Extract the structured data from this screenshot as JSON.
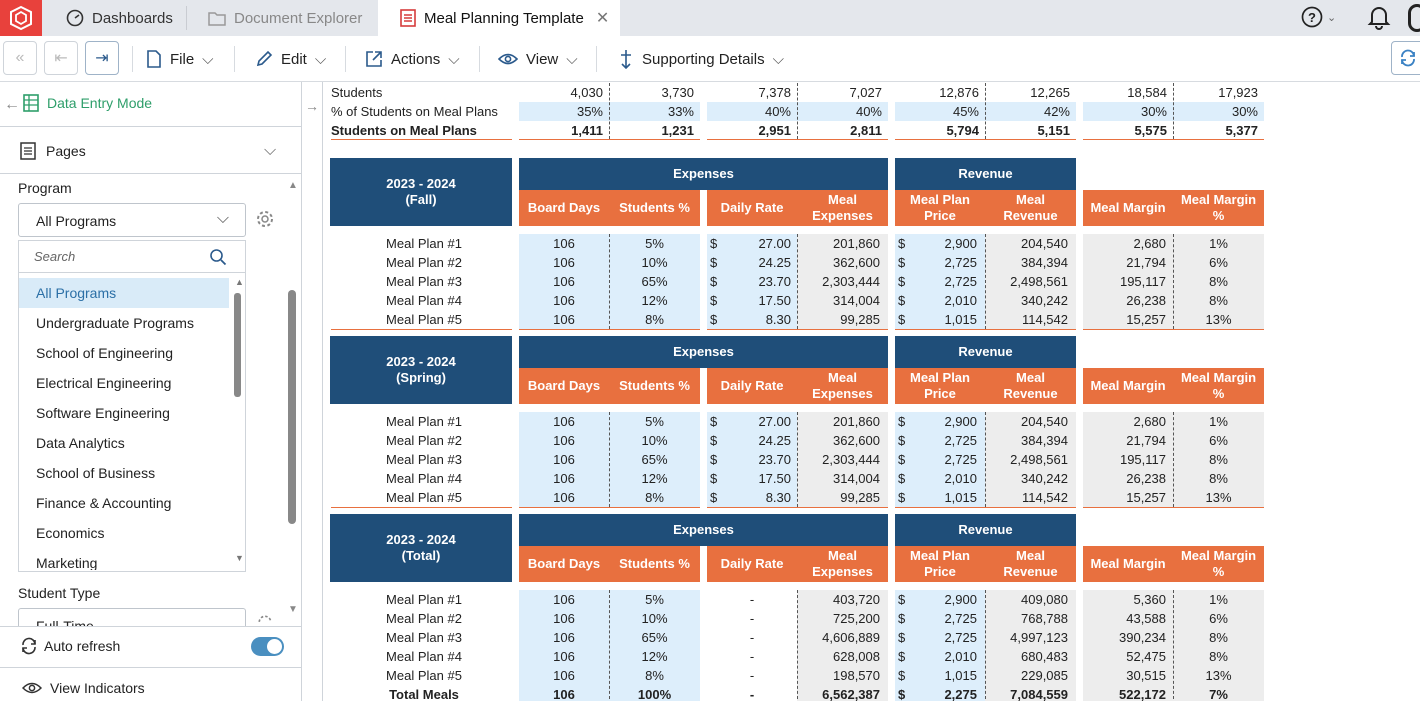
{
  "tabs": [
    {
      "label": "Dashboards",
      "icon": "dashboard-icon"
    },
    {
      "label": "Document Explorer",
      "icon": "folder-icon"
    },
    {
      "label": "Meal Planning Template",
      "icon": "document-icon"
    }
  ],
  "toolbar": {
    "menus": [
      "File",
      "Edit",
      "Actions",
      "View",
      "Supporting Details"
    ]
  },
  "sidebar": {
    "mode_label": "Data Entry Mode",
    "pages_label": "Pages",
    "program_label": "Program",
    "program_value": "All Programs",
    "search_placeholder": "Search",
    "options": [
      "All Programs",
      "Undergraduate Programs",
      "School of Engineering",
      "Electrical Engineering",
      "Software Engineering",
      "Data Analytics",
      "School of Business",
      "Finance & Accounting",
      "Economics",
      "Marketing"
    ],
    "student_type_label": "Student Type",
    "student_type_value": "Full-Time",
    "auto_refresh_label": "Auto refresh",
    "view_indicators_label": "View Indicators"
  },
  "top_rows": [
    {
      "label": "Students",
      "vals": [
        "4,030",
        "3,730",
        "7,378",
        "7,027",
        "12,876",
        "12,265",
        "18,584",
        "17,923"
      ]
    },
    {
      "label": "% of Students on Meal Plans",
      "vals": [
        "35%",
        "33%",
        "40%",
        "40%",
        "45%",
        "42%",
        "30%",
        "30%"
      ]
    },
    {
      "label": "Students on Meal Plans",
      "vals": [
        "1,411",
        "1,231",
        "2,951",
        "2,811",
        "5,794",
        "5,151",
        "5,575",
        "5,377"
      ]
    }
  ],
  "headers": {
    "expenses": "Expenses",
    "revenue": "Revenue",
    "board_days": "Board Days",
    "students_pct": "Students %",
    "daily_rate": "Daily Rate",
    "meal_expenses": "Meal Expenses",
    "meal_plan_price": "Meal Plan Price",
    "meal_revenue": "Meal Revenue",
    "meal_margin": "Meal Margin",
    "meal_margin_pct": "Meal Margin %"
  },
  "sections": [
    {
      "title1": "2023 - 2024",
      "title2": "(Fall)",
      "rows": [
        {
          "label": "Meal Plan #1",
          "days": "106",
          "pct": "5%",
          "rate": "27.00",
          "exp": "201,860",
          "price": "2,900",
          "rev": "204,540",
          "margin": "2,680",
          "mpct": "1%"
        },
        {
          "label": "Meal Plan #2",
          "days": "106",
          "pct": "10%",
          "rate": "24.25",
          "exp": "362,600",
          "price": "2,725",
          "rev": "384,394",
          "margin": "21,794",
          "mpct": "6%"
        },
        {
          "label": "Meal Plan #3",
          "days": "106",
          "pct": "65%",
          "rate": "23.70",
          "exp": "2,303,444",
          "price": "2,725",
          "rev": "2,498,561",
          "margin": "195,117",
          "mpct": "8%"
        },
        {
          "label": "Meal Plan #4",
          "days": "106",
          "pct": "12%",
          "rate": "17.50",
          "exp": "314,004",
          "price": "2,010",
          "rev": "340,242",
          "margin": "26,238",
          "mpct": "8%"
        },
        {
          "label": "Meal Plan #5",
          "days": "106",
          "pct": "8%",
          "rate": "8.30",
          "exp": "99,285",
          "price": "1,015",
          "rev": "114,542",
          "margin": "15,257",
          "mpct": "13%"
        }
      ]
    },
    {
      "title1": "2023 - 2024",
      "title2": "(Spring)",
      "rows": [
        {
          "label": "Meal Plan #1",
          "days": "106",
          "pct": "5%",
          "rate": "27.00",
          "exp": "201,860",
          "price": "2,900",
          "rev": "204,540",
          "margin": "2,680",
          "mpct": "1%"
        },
        {
          "label": "Meal Plan #2",
          "days": "106",
          "pct": "10%",
          "rate": "24.25",
          "exp": "362,600",
          "price": "2,725",
          "rev": "384,394",
          "margin": "21,794",
          "mpct": "6%"
        },
        {
          "label": "Meal Plan #3",
          "days": "106",
          "pct": "65%",
          "rate": "23.70",
          "exp": "2,303,444",
          "price": "2,725",
          "rev": "2,498,561",
          "margin": "195,117",
          "mpct": "8%"
        },
        {
          "label": "Meal Plan #4",
          "days": "106",
          "pct": "12%",
          "rate": "17.50",
          "exp": "314,004",
          "price": "2,010",
          "rev": "340,242",
          "margin": "26,238",
          "mpct": "8%"
        },
        {
          "label": "Meal Plan #5",
          "days": "106",
          "pct": "8%",
          "rate": "8.30",
          "exp": "99,285",
          "price": "1,015",
          "rev": "114,542",
          "margin": "15,257",
          "mpct": "13%"
        }
      ]
    },
    {
      "title1": "2023 - 2024",
      "title2": "(Total)",
      "rows": [
        {
          "label": "Meal Plan #1",
          "days": "106",
          "pct": "5%",
          "rate": "-",
          "exp": "403,720",
          "price": "2,900",
          "rev": "409,080",
          "margin": "5,360",
          "mpct": "1%"
        },
        {
          "label": "Meal Plan #2",
          "days": "106",
          "pct": "10%",
          "rate": "-",
          "exp": "725,200",
          "price": "2,725",
          "rev": "768,788",
          "margin": "43,588",
          "mpct": "6%"
        },
        {
          "label": "Meal Plan #3",
          "days": "106",
          "pct": "65%",
          "rate": "-",
          "exp": "4,606,889",
          "price": "2,725",
          "rev": "4,997,123",
          "margin": "390,234",
          "mpct": "8%"
        },
        {
          "label": "Meal Plan #4",
          "days": "106",
          "pct": "12%",
          "rate": "-",
          "exp": "628,008",
          "price": "2,010",
          "rev": "680,483",
          "margin": "52,475",
          "mpct": "8%"
        },
        {
          "label": "Meal Plan #5",
          "days": "106",
          "pct": "8%",
          "rate": "-",
          "exp": "198,570",
          "price": "1,015",
          "rev": "229,085",
          "margin": "30,515",
          "mpct": "13%"
        },
        {
          "label": "Total Meals",
          "days": "106",
          "pct": "100%",
          "rate": "-",
          "exp": "6,562,387",
          "price": "2,275",
          "rev": "7,084,559",
          "margin": "522,172",
          "mpct": "7%",
          "bold": true
        }
      ]
    }
  ],
  "currency": "$",
  "colors": {
    "navy": "#1f4e79",
    "orange": "#e8703f",
    "input_blue": "#ddeefb",
    "gray": "#ededed",
    "accent_green": "#2e9e6a",
    "toggle": "#4a8fc0"
  }
}
